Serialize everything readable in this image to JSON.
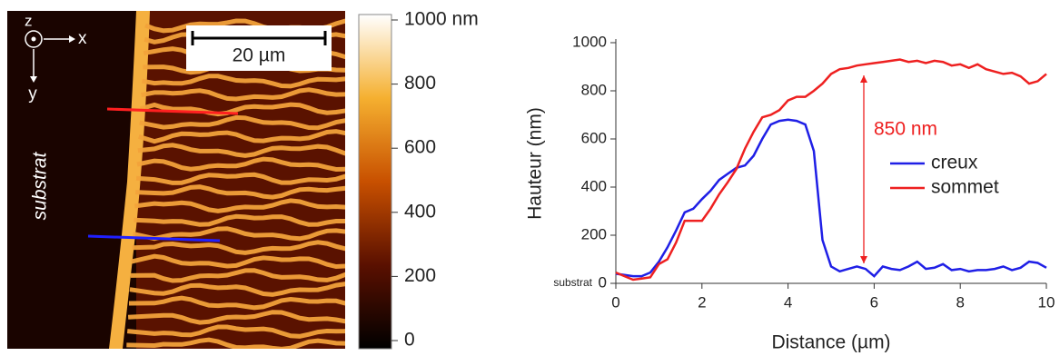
{
  "image": {
    "axis_z": "z",
    "axis_x": "x",
    "axis_y": "y",
    "scale_bar": "20 µm",
    "substrate_label": "substrat"
  },
  "colorbar": {
    "lim": [
      0,
      1000
    ],
    "ticks": [
      {
        "value": 1000,
        "label": "1000 nm"
      },
      800,
      600,
      400,
      200,
      0
    ]
  },
  "chart_data": {
    "type": "line",
    "xlabel": "Distance (µm)",
    "ylabel": "Hauteur (nm)",
    "annotations": [
      "850 nm",
      "substrat"
    ],
    "x": [
      0,
      0.2,
      0.4,
      0.6,
      0.8,
      1.0,
      1.2,
      1.4,
      1.6,
      1.8,
      2.0,
      2.2,
      2.4,
      2.6,
      2.8,
      3.0,
      3.2,
      3.4,
      3.6,
      3.8,
      4.0,
      4.2,
      4.4,
      4.6,
      4.8,
      5.0,
      5.2,
      5.4,
      5.6,
      5.8,
      6.0,
      6.2,
      6.4,
      6.6,
      6.8,
      7.0,
      7.2,
      7.4,
      7.6,
      7.8,
      8.0,
      8.2,
      8.4,
      8.6,
      8.8,
      9.0,
      9.2,
      9.4,
      9.6,
      9.8,
      10.0
    ],
    "series": [
      {
        "name": "creux",
        "color": "#1f1fe6",
        "values": [
          40,
          35,
          30,
          30,
          45,
          90,
          150,
          220,
          295,
          310,
          350,
          385,
          430,
          455,
          480,
          490,
          530,
          600,
          660,
          675,
          680,
          675,
          660,
          550,
          180,
          70,
          50,
          60,
          70,
          60,
          30,
          70,
          60,
          55,
          70,
          90,
          60,
          65,
          80,
          55,
          60,
          50,
          55,
          55,
          60,
          70,
          55,
          65,
          90,
          85,
          65
        ]
      },
      {
        "name": "sommet",
        "color": "#ee2020",
        "values": [
          45,
          30,
          15,
          20,
          25,
          80,
          100,
          170,
          260,
          260,
          260,
          310,
          370,
          420,
          475,
          560,
          630,
          690,
          700,
          720,
          760,
          775,
          775,
          800,
          830,
          870,
          890,
          895,
          905,
          910,
          915,
          920,
          925,
          930,
          920,
          925,
          915,
          925,
          920,
          905,
          910,
          895,
          910,
          890,
          880,
          870,
          875,
          860,
          830,
          840,
          870
        ]
      }
    ],
    "xlim": [
      0,
      10
    ],
    "xticks": [
      0,
      2,
      4,
      6,
      8,
      10
    ],
    "ylim": [
      0,
      1000
    ],
    "yticks": [
      0,
      200,
      400,
      600,
      800,
      1000
    ]
  }
}
